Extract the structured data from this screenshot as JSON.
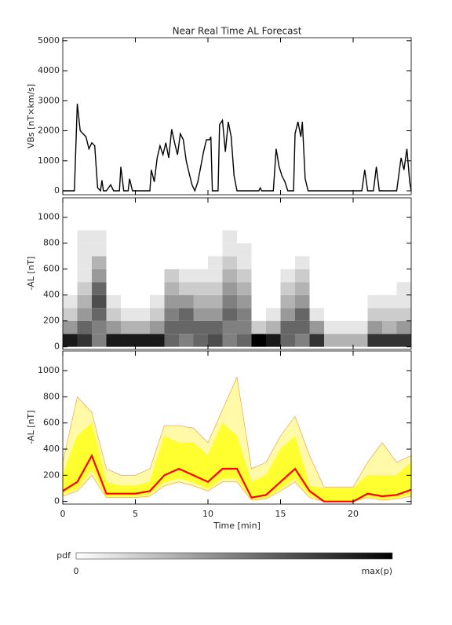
{
  "chart_data": [
    {
      "type": "line",
      "title": "Near Real Time AL Forecast",
      "ylabel": "VBs [nT×km/s]",
      "xlim": [
        0,
        24
      ],
      "ylim": [
        -130,
        5100
      ],
      "yticks": [
        0,
        1000,
        2000,
        3000,
        4000,
        5000
      ],
      "color": "#000000",
      "x": [
        0,
        0.8,
        1.0,
        1.2,
        1.4,
        1.6,
        1.8,
        2.0,
        2.2,
        2.4,
        2.6,
        2.7,
        2.8,
        3.0,
        3.3,
        3.5,
        3.9,
        4.0,
        4.2,
        4.5,
        4.6,
        4.8,
        6.0,
        6.1,
        6.3,
        6.5,
        6.7,
        6.9,
        7.1,
        7.3,
        7.5,
        7.7,
        7.9,
        8.1,
        8.3,
        8.5,
        8.7,
        8.9,
        9.1,
        9.3,
        9.5,
        9.7,
        9.9,
        10.1,
        10.2,
        10.3,
        10.7,
        10.8,
        11.0,
        11.2,
        11.4,
        11.6,
        11.8,
        12.0,
        13.5,
        13.6,
        13.7,
        14.5,
        14.7,
        14.9,
        15.1,
        15.3,
        15.5,
        15.9,
        16.0,
        16.2,
        16.4,
        16.5,
        16.7,
        16.9,
        20.6,
        20.8,
        21.0,
        21.4,
        21.6,
        21.8,
        23.0,
        23.3,
        23.5,
        23.7,
        23.9,
        24
      ],
      "values": [
        0,
        0,
        2900,
        2000,
        1900,
        1800,
        1400,
        1600,
        1500,
        100,
        0,
        350,
        0,
        0,
        200,
        0,
        0,
        800,
        0,
        0,
        400,
        0,
        0,
        700,
        300,
        1100,
        1500,
        1200,
        1600,
        1100,
        2050,
        1600,
        1200,
        1900,
        1700,
        1000,
        600,
        200,
        0,
        300,
        800,
        1300,
        1700,
        1700,
        1800,
        0,
        0,
        2200,
        2350,
        1300,
        2300,
        1800,
        500,
        0,
        0,
        100,
        0,
        0,
        1400,
        800,
        500,
        300,
        0,
        0,
        1900,
        2300,
        1800,
        2300,
        400,
        0,
        0,
        700,
        0,
        0,
        800,
        0,
        0,
        1100,
        700,
        1400,
        300,
        0
      ]
    },
    {
      "type": "heatmap",
      "ylabel": "-AL [nT]",
      "xlim": [
        0,
        24
      ],
      "ylim": [
        -20,
        1150
      ],
      "yticks": [
        0,
        200,
        400,
        600,
        800,
        1000
      ],
      "x_bins": [
        0,
        1,
        2,
        3,
        4,
        5,
        6,
        7,
        8,
        9,
        10,
        11,
        12,
        13,
        14,
        15,
        16,
        17,
        18,
        19,
        20,
        21,
        22,
        23,
        24
      ],
      "y_bins": [
        0,
        100,
        200,
        300,
        400,
        500,
        600,
        700,
        800,
        900,
        1000,
        1100
      ],
      "z": [
        [
          0.9,
          0.4,
          0.2,
          0.1,
          0,
          0,
          0,
          0,
          0,
          0,
          0
        ],
        [
          0.8,
          0.6,
          0.4,
          0.3,
          0.2,
          0.1,
          0.1,
          0.1,
          0.1,
          0,
          0
        ],
        [
          0.5,
          0.5,
          0.6,
          0.7,
          0.6,
          0.4,
          0.3,
          0.1,
          0.1,
          0,
          0
        ],
        [
          0.9,
          0.4,
          0.2,
          0.1,
          0,
          0,
          0,
          0,
          0,
          0,
          0
        ],
        [
          0.9,
          0.3,
          0.1,
          0,
          0,
          0,
          0,
          0,
          0,
          0,
          0
        ],
        [
          0.9,
          0.3,
          0.1,
          0,
          0,
          0,
          0,
          0,
          0,
          0,
          0
        ],
        [
          0.9,
          0.4,
          0.2,
          0.1,
          0,
          0,
          0,
          0,
          0,
          0,
          0
        ],
        [
          0.6,
          0.6,
          0.5,
          0.4,
          0.3,
          0.2,
          0,
          0,
          0,
          0,
          0
        ],
        [
          0.5,
          0.6,
          0.6,
          0.4,
          0.2,
          0.1,
          0,
          0,
          0,
          0,
          0
        ],
        [
          0.6,
          0.6,
          0.4,
          0.3,
          0.2,
          0.1,
          0,
          0,
          0,
          0,
          0
        ],
        [
          0.7,
          0.6,
          0.4,
          0.3,
          0.2,
          0.1,
          0.1,
          0,
          0,
          0,
          0
        ],
        [
          0.5,
          0.5,
          0.6,
          0.5,
          0.4,
          0.3,
          0.2,
          0.1,
          0.1,
          0,
          0
        ],
        [
          0.6,
          0.5,
          0.5,
          0.4,
          0.3,
          0.2,
          0.1,
          0.1,
          0,
          0,
          0
        ],
        [
          1,
          0.2,
          0,
          0,
          0,
          0,
          0,
          0,
          0,
          0,
          0
        ],
        [
          0.9,
          0.3,
          0.1,
          0,
          0,
          0,
          0,
          0,
          0,
          0,
          0
        ],
        [
          0.6,
          0.6,
          0.4,
          0.3,
          0.2,
          0.1,
          0,
          0,
          0,
          0,
          0
        ],
        [
          0.5,
          0.6,
          0.6,
          0.4,
          0.3,
          0.2,
          0.1,
          0,
          0,
          0,
          0
        ],
        [
          0.8,
          0.4,
          0.1,
          0,
          0,
          0,
          0,
          0,
          0,
          0,
          0
        ],
        [
          0.3,
          0.1,
          0,
          0,
          0,
          0,
          0,
          0,
          0,
          0,
          0
        ],
        [
          0.3,
          0.1,
          0,
          0,
          0,
          0,
          0,
          0,
          0,
          0,
          0
        ],
        [
          0.3,
          0.1,
          0,
          0,
          0,
          0,
          0,
          0,
          0,
          0,
          0
        ],
        [
          0.8,
          0.4,
          0.2,
          0.1,
          0,
          0,
          0,
          0,
          0,
          0,
          0
        ],
        [
          0.8,
          0.3,
          0.2,
          0.1,
          0,
          0,
          0,
          0,
          0,
          0,
          0
        ],
        [
          0.8,
          0.4,
          0.2,
          0.1,
          0.1,
          0,
          0,
          0,
          0,
          0,
          0
        ]
      ],
      "colorbar": {
        "label": "pdf",
        "min_label": "0",
        "max_label": "max(p)"
      }
    },
    {
      "type": "band",
      "ylabel": "-AL [nT]",
      "xlabel": "Time [min]",
      "xlim": [
        0,
        24
      ],
      "xticks": [
        0,
        5,
        10,
        15,
        20
      ],
      "ylim": [
        -20,
        1150
      ],
      "yticks": [
        0,
        200,
        400,
        600,
        800,
        1000
      ],
      "x": [
        0,
        1,
        2,
        3,
        4,
        5,
        6,
        7,
        8,
        9,
        10,
        11,
        12,
        13,
        14,
        15,
        16,
        17,
        18,
        19,
        20,
        21,
        22,
        23,
        24
      ],
      "bands": [
        {
          "color": "#fff9a8",
          "edge": "#f0b050",
          "lower": [
            40,
            80,
            200,
            30,
            30,
            30,
            40,
            120,
            150,
            120,
            80,
            150,
            150,
            10,
            20,
            80,
            150,
            30,
            0,
            0,
            0,
            30,
            10,
            20,
            40
          ],
          "upper": [
            300,
            800,
            680,
            250,
            200,
            200,
            250,
            580,
            580,
            560,
            450,
            700,
            950,
            250,
            300,
            500,
            650,
            350,
            110,
            110,
            110,
            300,
            450,
            300,
            350
          ]
        },
        {
          "color": "#ffff30",
          "edge": "#ffff30",
          "lower": [
            60,
            100,
            250,
            40,
            40,
            40,
            60,
            150,
            180,
            150,
            100,
            180,
            180,
            20,
            30,
            100,
            180,
            50,
            0,
            0,
            0,
            40,
            20,
            30,
            60
          ],
          "upper": [
            200,
            500,
            600,
            150,
            120,
            120,
            150,
            500,
            450,
            450,
            350,
            600,
            500,
            150,
            200,
            400,
            500,
            120,
            100,
            100,
            100,
            200,
            200,
            200,
            300
          ]
        }
      ],
      "series": [
        {
          "color": "#ff0000",
          "values": [
            80,
            150,
            350,
            60,
            60,
            60,
            80,
            200,
            250,
            200,
            150,
            250,
            250,
            30,
            50,
            150,
            250,
            80,
            0,
            0,
            0,
            60,
            40,
            50,
            90
          ]
        }
      ]
    }
  ]
}
